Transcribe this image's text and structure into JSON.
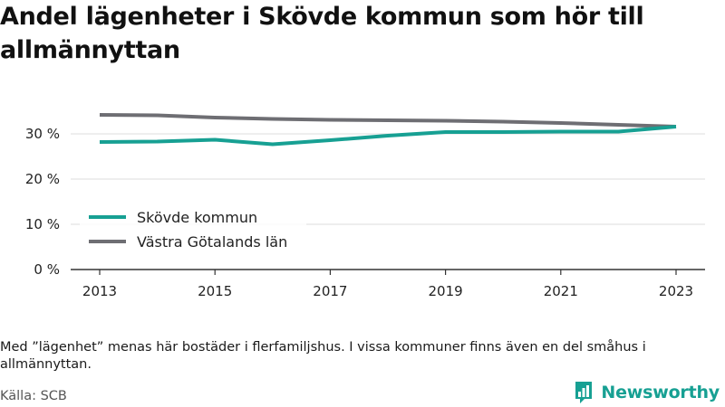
{
  "header": {
    "title": "Andel lägenheter i Skövde kommun som hör till allmännyttan"
  },
  "footer": {
    "note": "Med ”lägenhet” menas här bostäder i flerfamiljshus. I vissa kommuner finns även en del småhus i allmännyttan.",
    "source": "Källa: SCB",
    "brand": "Newsworthy"
  },
  "colors": {
    "accent": "#17a093",
    "secondary": "#6e6e73",
    "grid": "#dddddd",
    "axis": "#333333"
  },
  "icons": {
    "brand_icon": "newsworthy-logo-icon"
  },
  "chart_data": {
    "type": "line",
    "x": [
      2013,
      2014,
      2015,
      2016,
      2017,
      2018,
      2019,
      2020,
      2021,
      2022,
      2023
    ],
    "series": [
      {
        "name": "Skövde kommun",
        "color": "#17a093",
        "values": [
          28.2,
          28.3,
          28.7,
          27.7,
          28.6,
          29.6,
          30.4,
          30.4,
          30.5,
          30.5,
          31.6
        ]
      },
      {
        "name": "Västra Götalands län",
        "color": "#6e6e73",
        "values": [
          34.2,
          34.1,
          33.6,
          33.3,
          33.1,
          33.0,
          32.9,
          32.7,
          32.4,
          32.0,
          31.6
        ]
      }
    ],
    "x_ticks": [
      2013,
      2015,
      2017,
      2019,
      2021,
      2023
    ],
    "x_tick_labels": [
      "2013",
      "2015",
      "2017",
      "2019",
      "2021",
      "2023"
    ],
    "y_ticks": [
      0,
      10,
      20,
      30
    ],
    "y_tick_labels": [
      "0 %",
      "10 %",
      "20 %",
      "30 %"
    ],
    "ylim": [
      0,
      35
    ],
    "xlim": [
      2013,
      2023
    ],
    "grid": true,
    "legend_position": "bottom-left"
  }
}
